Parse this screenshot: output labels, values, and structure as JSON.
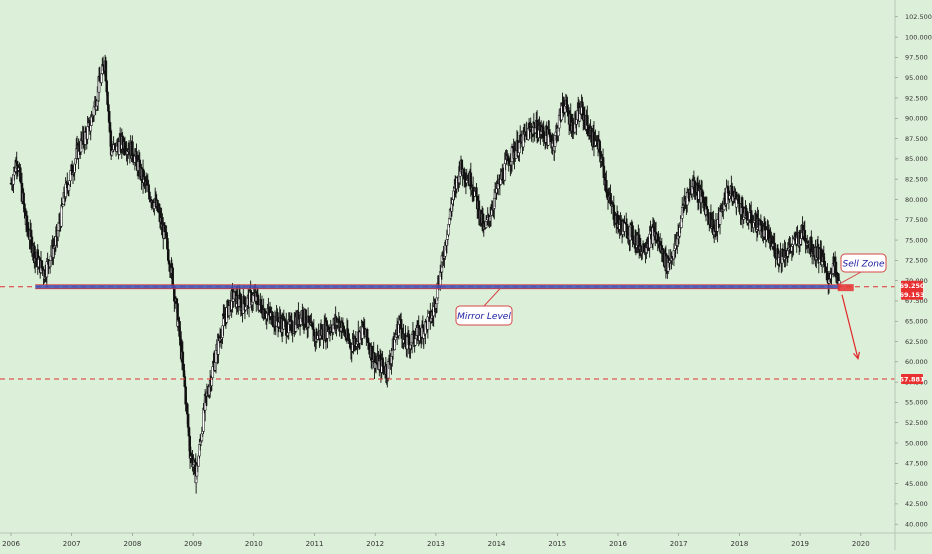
{
  "chart_data": {
    "type": "line",
    "style": "candlestick",
    "colors": {
      "background": "#dcefd9",
      "price": "#111111",
      "mirror_level": "#3a4fb8",
      "support_line": "#e03030",
      "arrow": "#e02a2a",
      "callout_border": "#d64545",
      "callout_text": "#1a1aa0",
      "tag_red": "#e83030"
    },
    "ylim": [
      40,
      102.5
    ],
    "y_ticks": [
      "102.500",
      "100.000",
      "97.500",
      "95.000",
      "92.500",
      "90.000",
      "87.500",
      "85.000",
      "82.500",
      "80.000",
      "77.500",
      "75.000",
      "72.500",
      "70.000",
      "67.500",
      "65.000",
      "62.500",
      "60.000",
      "57.500",
      "55.000",
      "52.500",
      "50.000",
      "47.500",
      "45.000",
      "42.500",
      "40.000"
    ],
    "xlim": [
      2006.0,
      2020.3
    ],
    "x_ticks": [
      "2006",
      "2007",
      "2008",
      "2009",
      "2010",
      "2011",
      "2012",
      "2013",
      "2014",
      "2015",
      "2016",
      "2017",
      "2018",
      "2019",
      "2020"
    ],
    "series": [
      {
        "x": [
          2006.0,
          2006.1,
          2006.25,
          2006.4,
          2006.55,
          2006.75,
          2006.9,
          2007.1,
          2007.3,
          2007.45,
          2007.55,
          2007.65,
          2007.85,
          2008.0,
          2008.2,
          2008.4,
          2008.55,
          2008.65,
          2008.75,
          2008.85,
          2008.95,
          2009.05,
          2009.2,
          2009.35,
          2009.5,
          2009.65,
          2009.8,
          2010.0,
          2010.2,
          2010.4,
          2010.6,
          2010.8,
          2011.0,
          2011.2,
          2011.4,
          2011.6,
          2011.8,
          2012.0,
          2012.2,
          2012.4,
          2012.5,
          2012.65,
          2012.8,
          2012.95,
          2013.1,
          2013.25,
          2013.4,
          2013.6,
          2013.8,
          2014.0,
          2014.2,
          2014.4,
          2014.6,
          2014.8,
          2014.95,
          2015.1,
          2015.25,
          2015.4,
          2015.55,
          2015.7,
          2015.85,
          2016.0,
          2016.2,
          2016.4,
          2016.6,
          2016.8,
          2016.95,
          2017.1,
          2017.25,
          2017.45,
          2017.6,
          2017.8,
          2017.95,
          2018.1,
          2018.3,
          2018.5,
          2018.65,
          2018.85,
          2019.05,
          2019.2,
          2019.35,
          2019.45,
          2019.55,
          2019.65
        ],
        "y": [
          82,
          85,
          77,
          73,
          71,
          75,
          81,
          86,
          89,
          94,
          97,
          86,
          87,
          86,
          82,
          79,
          75,
          71,
          65,
          58,
          49,
          46,
          55,
          60,
          65,
          68,
          67,
          68,
          66,
          65,
          64,
          66,
          63,
          64,
          65,
          62,
          64,
          60,
          59,
          65,
          62,
          63,
          64,
          66,
          72,
          79,
          84,
          82,
          76,
          81,
          85,
          87,
          89,
          88,
          87,
          92,
          89,
          91,
          88,
          86,
          80,
          77,
          76,
          74,
          76,
          72,
          74,
          80,
          82,
          79,
          76,
          81,
          80,
          78,
          77,
          75,
          73,
          74,
          76,
          74,
          73,
          70,
          72,
          69.1
        ]
      }
    ],
    "levels": [
      {
        "price": 69.25,
        "style": "solid-band",
        "label": "Mirror Level"
      },
      {
        "price": 57.881,
        "style": "dashed"
      },
      {
        "price": 69.25,
        "style": "dashed-extension"
      }
    ],
    "annotations": {
      "mirror_label": "Mirror Level",
      "sell_label": "Sell Zone",
      "arrow": {
        "from": [
          2019.75,
          69.0
        ],
        "to": [
          2019.95,
          61.0
        ]
      }
    },
    "price_tags": [
      {
        "price": 69.25,
        "label": "69.250"
      },
      {
        "price": 69.153,
        "label": "69.153"
      },
      {
        "price": 57.881,
        "label": "57.881"
      }
    ],
    "grid": false,
    "legend": "none"
  }
}
